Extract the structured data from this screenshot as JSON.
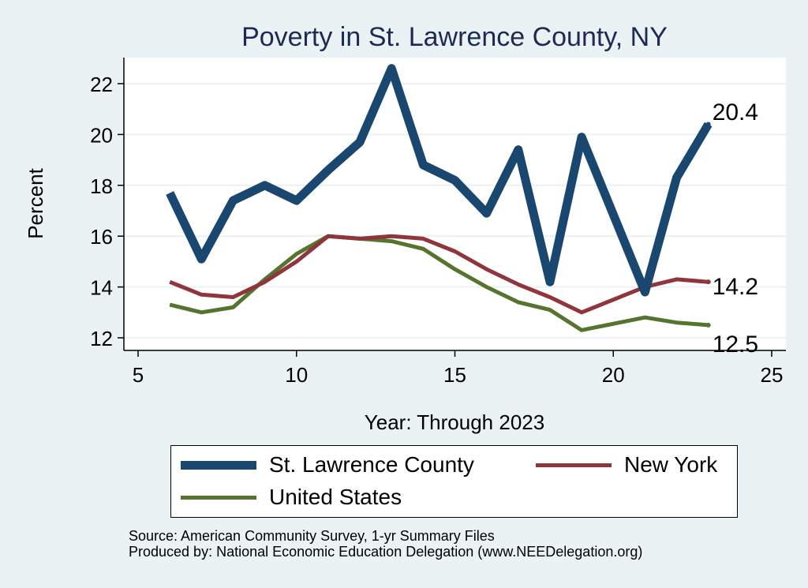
{
  "chart_data": {
    "type": "line",
    "title": "Poverty in St. Lawrence County, NY",
    "xlabel": "Year: Through 2023",
    "ylabel": "Percent",
    "xlim": [
      5,
      25
    ],
    "ylim": [
      11.5,
      23.1
    ],
    "xticks": [
      5,
      10,
      15,
      20,
      25
    ],
    "yticks": [
      12,
      14,
      16,
      18,
      20,
      22
    ],
    "grid": true,
    "legend_position": "bottom",
    "x": [
      6,
      7,
      8,
      9,
      10,
      11,
      12,
      13,
      14,
      15,
      16,
      17,
      18,
      19,
      21,
      22,
      23
    ],
    "series": [
      {
        "name": "St. Lawrence County",
        "color": "#1a476f",
        "values": [
          17.7,
          15.1,
          17.4,
          18.0,
          17.4,
          18.6,
          19.7,
          22.6,
          18.8,
          18.2,
          16.9,
          19.4,
          14.2,
          19.9,
          13.8,
          18.3,
          20.4
        ]
      },
      {
        "name": "New York",
        "color": "#90353b",
        "values": [
          14.2,
          13.7,
          13.6,
          14.2,
          15.0,
          16.0,
          15.9,
          16.0,
          15.9,
          15.4,
          14.7,
          14.1,
          13.6,
          13.0,
          14.0,
          14.3,
          14.2
        ]
      },
      {
        "name": "United States",
        "color": "#55752f",
        "values": [
          13.3,
          13.0,
          13.2,
          14.3,
          15.3,
          16.0,
          15.9,
          15.8,
          15.5,
          14.7,
          14.0,
          13.4,
          13.1,
          12.3,
          12.8,
          12.6,
          12.5
        ]
      }
    ],
    "end_labels": [
      "20.4",
      "14.2",
      "12.5"
    ]
  },
  "notes": {
    "source": "Source: American Community Survey, 1-yr Summary Files",
    "produced": "Produced by: National Economic Education Delegation (www.NEEDelegation.org)"
  }
}
